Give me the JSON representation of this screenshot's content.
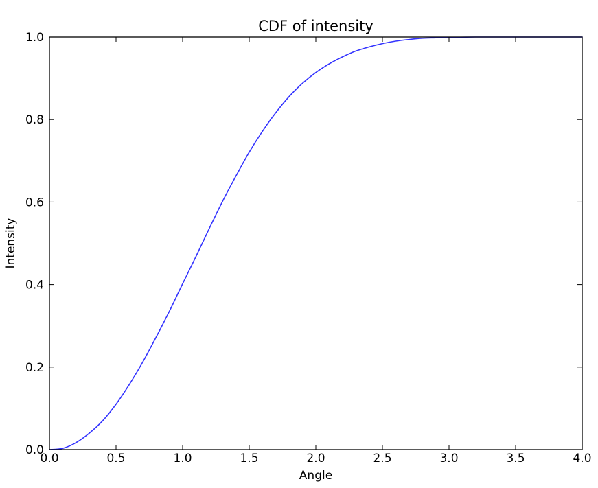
{
  "chart_data": {
    "type": "line",
    "title": "CDF of intensity",
    "xlabel": "Angle",
    "ylabel": "Intensity",
    "xlim": [
      0.0,
      4.0
    ],
    "ylim": [
      0.0,
      1.0
    ],
    "xticks": [
      0.0,
      0.5,
      1.0,
      1.5,
      2.0,
      2.5,
      3.0,
      3.5,
      4.0
    ],
    "xtick_labels": [
      "0.0",
      "0.5",
      "1.0",
      "1.5",
      "2.0",
      "2.5",
      "3.0",
      "3.5",
      "4.0"
    ],
    "yticks": [
      0.0,
      0.2,
      0.4,
      0.6,
      0.8,
      1.0
    ],
    "ytick_labels": [
      "0.0",
      "0.2",
      "0.4",
      "0.6",
      "0.8",
      "1.0"
    ],
    "grid": false,
    "series": [
      {
        "color": "#3333ff",
        "x": [
          0.0,
          0.1,
          0.2,
          0.3,
          0.4,
          0.5,
          0.6,
          0.7,
          0.8,
          0.9,
          1.0,
          1.1,
          1.2,
          1.3,
          1.4,
          1.5,
          1.6,
          1.7,
          1.8,
          1.9,
          2.0,
          2.1,
          2.2,
          2.3,
          2.4,
          2.5,
          2.6,
          2.7,
          2.8,
          2.9,
          3.0,
          3.2,
          3.4,
          3.6,
          3.8,
          4.0
        ],
        "y": [
          0.0,
          0.003,
          0.017,
          0.04,
          0.07,
          0.11,
          0.158,
          0.212,
          0.272,
          0.335,
          0.402,
          0.468,
          0.536,
          0.602,
          0.663,
          0.721,
          0.772,
          0.817,
          0.856,
          0.888,
          0.914,
          0.935,
          0.952,
          0.966,
          0.976,
          0.984,
          0.99,
          0.994,
          0.997,
          0.998,
          0.999,
          1.0,
          1.0,
          1.0,
          1.0,
          1.0
        ]
      }
    ]
  }
}
